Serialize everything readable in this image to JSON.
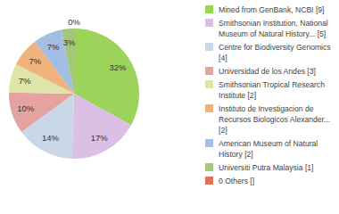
{
  "chart_data": {
    "type": "pie",
    "categories": [
      "Mined from GenBank, NCBI [9]",
      "Smithsonian Institution, National Museum of Natural History... [5]",
      "Centre for Biodiversity Genomics [4]",
      "Universidad de los Andes [3]",
      "Smithsonian Tropical Research Institute [2]",
      "Instituto de Investigacion de Recursos Biologicos Alexander... [2]",
      "American Museum of Natural History [2]",
      "Universiti Putra Malaysia [1]",
      "0 Others []"
    ],
    "values": [
      32,
      17,
      14,
      10,
      7,
      7,
      7,
      3,
      0
    ],
    "value_labels": [
      "32%",
      "17%",
      "14%",
      "10%",
      "7%",
      "7%",
      "7%",
      "3%",
      "0%"
    ],
    "colors": [
      "#9cd35b",
      "#dcbfe4",
      "#c9d7e6",
      "#e5a3a0",
      "#dfe5a9",
      "#f0b37c",
      "#a3bde3",
      "#a3c87d",
      "#e0735f"
    ],
    "data_labels": true,
    "legend": "right"
  }
}
